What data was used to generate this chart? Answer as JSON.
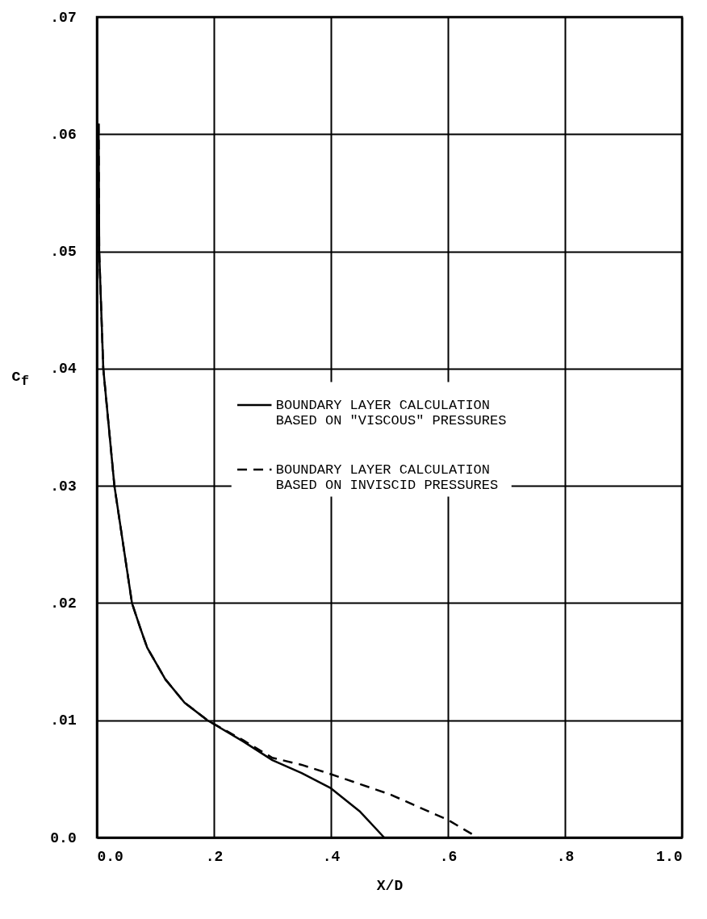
{
  "chart_data": {
    "type": "line",
    "xlabel": "X/D",
    "ylabel": "c$_{f}$",
    "xlim": [
      0,
      1
    ],
    "ylim": [
      0,
      0.07
    ],
    "xticks": [
      {
        "value": 0,
        "label": "0.0"
      },
      {
        "value": 0.2,
        "label": ".2"
      },
      {
        "value": 0.4,
        "label": ".4"
      },
      {
        "value": 0.6,
        "label": ".6"
      },
      {
        "value": 0.8,
        "label": ".8"
      },
      {
        "value": 1,
        "label": "1.0"
      }
    ],
    "yticks": [
      {
        "value": 0,
        "label": "0.0"
      },
      {
        "value": 0.01,
        "label": ".01"
      },
      {
        "value": 0.02,
        "label": ".02"
      },
      {
        "value": 0.03,
        "label": ".03"
      },
      {
        "value": 0.04,
        "label": ".04"
      },
      {
        "value": 0.05,
        "label": ".05"
      },
      {
        "value": 0.06,
        "label": ".06"
      },
      {
        "value": 0.07,
        "label": ".07"
      }
    ],
    "grid": true,
    "legend": "right",
    "marker": "none",
    "series": [
      {
        "name": "BOUNDARY LAYER CALCULATION BASED ON \"VISCOUS\" PRESSURES",
        "color": "#000000",
        "line_style": "solid",
        "x": [
          0.003,
          0.004,
          0.011,
          0.03,
          0.06,
          0.074,
          0.086,
          0.117,
          0.15,
          0.189,
          0.25,
          0.3,
          0.35,
          0.4,
          0.45,
          0.491
        ],
        "values": [
          0.0609,
          0.05,
          0.04,
          0.03,
          0.02,
          0.0179,
          0.0162,
          0.0135,
          0.0115,
          0.01,
          0.0082,
          0.0066,
          0.0055,
          0.0042,
          0.0022,
          0
        ]
      },
      {
        "name": "BOUNDARY LAYER CALCULATION BASED ON INVISCID PRESSURES",
        "color": "#000000",
        "line_style": "dashed",
        "x": [
          0.003,
          0.004,
          0.011,
          0.03,
          0.06,
          0.074,
          0.086,
          0.117,
          0.15,
          0.189,
          0.25,
          0.3,
          0.35,
          0.4,
          0.5,
          0.6,
          0.651
        ],
        "values": [
          0.0609,
          0.05,
          0.04,
          0.03,
          0.02,
          0.0179,
          0.0162,
          0.0135,
          0.0115,
          0.01,
          0.0083,
          0.0068,
          0.0062,
          0.0054,
          0.0037,
          0.0015,
          0
        ]
      }
    ]
  }
}
